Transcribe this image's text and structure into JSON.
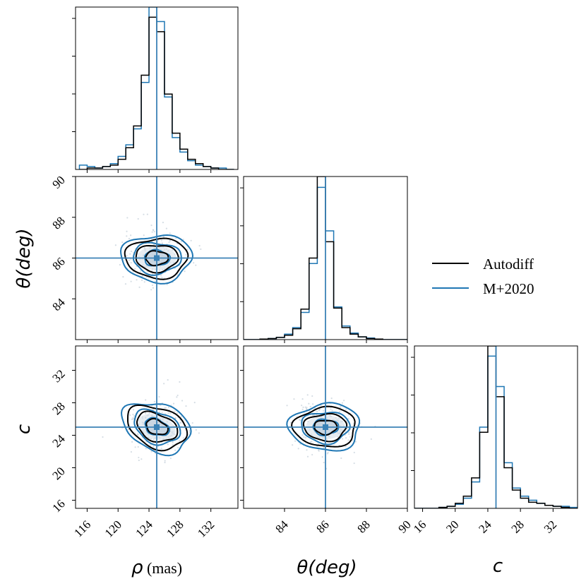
{
  "chart_data": {
    "type": "corner",
    "parameters": [
      {
        "id": "rho",
        "symbol": "ρ",
        "unit": " (mas)",
        "true_value": 125,
        "range": [
          114.5,
          135.5
        ],
        "ticks": [
          116,
          120,
          124,
          128,
          132
        ]
      },
      {
        "id": "theta",
        "symbol": "θ(deg)",
        "unit": "",
        "true_value": 86,
        "range": [
          82,
          90
        ],
        "ticks": [
          84,
          86,
          88,
          90
        ],
        "y_ticks": [
          84,
          86,
          88,
          90
        ]
      },
      {
        "id": "c",
        "symbol": "c",
        "unit": "",
        "true_value": 25,
        "range": [
          15,
          35
        ],
        "ticks": [
          16,
          20,
          24,
          28,
          32
        ],
        "y_ticks": [
          16,
          20,
          24,
          28,
          32
        ]
      }
    ],
    "series": [
      {
        "name": "Autodiff",
        "color": "#000000"
      },
      {
        "name": "M+2020",
        "color": "#1f77b4"
      }
    ],
    "truth_color": "#3b82b6",
    "legend_position": "middle-right",
    "histograms": {
      "rho": {
        "bin_edges": [
          115,
          116,
          117,
          118,
          119,
          120,
          121,
          122,
          123,
          124,
          125,
          126,
          127,
          128,
          129,
          130,
          131,
          132,
          133,
          134,
          135
        ],
        "Autodiff": [
          0,
          1,
          1,
          2,
          3,
          7,
          15,
          30,
          65,
          105,
          95,
          52,
          25,
          14,
          7,
          4,
          2,
          1,
          0,
          0
        ],
        "M+2020": [
          3,
          2,
          1,
          2,
          4,
          9,
          17,
          28,
          60,
          112,
          102,
          50,
          22,
          12,
          6,
          3,
          2,
          1,
          1,
          0
        ]
      },
      "theta": {
        "bin_edges": [
          82,
          82.4,
          82.8,
          83.2,
          83.6,
          84,
          84.4,
          84.8,
          85.2,
          85.6,
          86,
          86.4,
          86.8,
          87.2,
          87.6,
          88,
          88.4,
          88.8,
          89.2,
          89.6,
          90
        ],
        "Autodiff": [
          0,
          0,
          1,
          2,
          4,
          8,
          20,
          56,
          150,
          300,
          180,
          58,
          22,
          10,
          5,
          2,
          1,
          0,
          0,
          0
        ],
        "M+2020": [
          0,
          0,
          1,
          2,
          4,
          10,
          22,
          50,
          140,
          280,
          200,
          60,
          25,
          12,
          5,
          3,
          1,
          0,
          0,
          0
        ]
      },
      "c": {
        "bin_edges": [
          15,
          16,
          17,
          18,
          19,
          20,
          21,
          22,
          23,
          24,
          25,
          26,
          27,
          28,
          29,
          30,
          31,
          32,
          33,
          34,
          35
        ],
        "Autodiff": [
          0,
          0,
          0,
          1,
          2,
          5,
          12,
          30,
          75,
          160,
          110,
          40,
          18,
          10,
          6,
          5,
          3,
          2,
          1,
          0
        ],
        "M+2020": [
          0,
          0,
          0,
          1,
          2,
          4,
          10,
          26,
          80,
          150,
          120,
          45,
          20,
          12,
          8,
          5,
          3,
          2,
          2,
          1
        ]
      }
    }
  },
  "legend": {
    "items": [
      {
        "label": "Autodiff"
      },
      {
        "label": "M+2020"
      }
    ]
  }
}
